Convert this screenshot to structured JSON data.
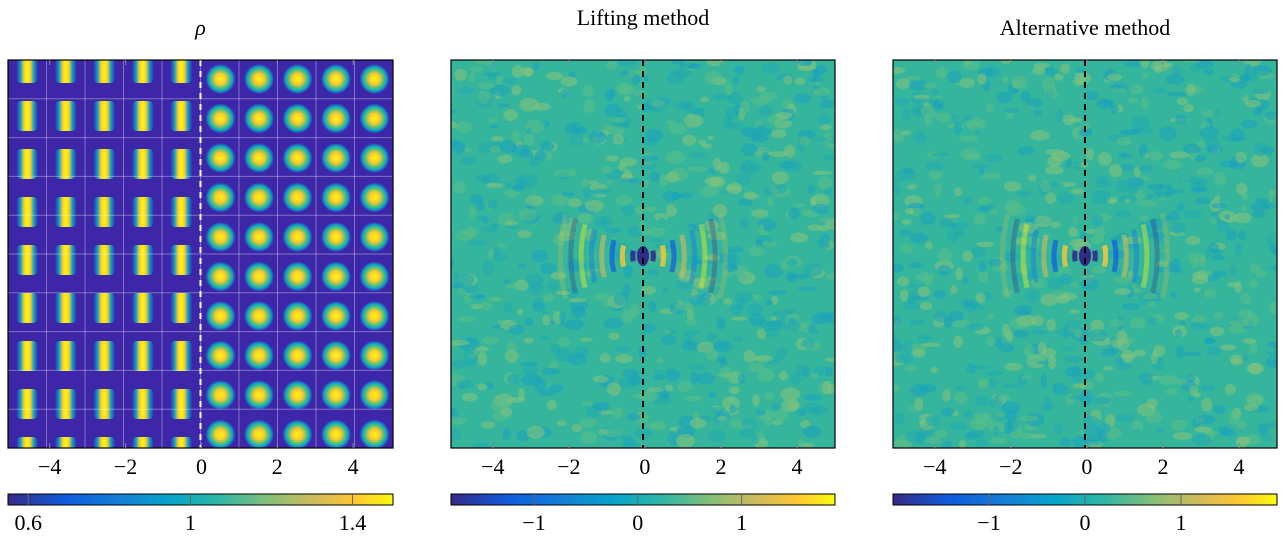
{
  "chart_data": [
    {
      "type": "heatmap",
      "title": "ρ",
      "xlim": [
        -5.1,
        5.05
      ],
      "xticks": [
        {
          "value": -4,
          "label": "−4"
        },
        {
          "value": -2,
          "label": "−2"
        },
        0,
        2,
        4
      ],
      "clim": [
        0.55,
        1.5
      ],
      "cticks": [
        0.6,
        1,
        1.4
      ]
    },
    {
      "type": "heatmap",
      "title": "Lifting method",
      "xlim": [
        -5.1,
        5.0
      ],
      "xticks": [
        {
          "value": -4,
          "label": "−4"
        },
        {
          "value": -2,
          "label": "−2"
        },
        0,
        2,
        4
      ],
      "clim": [
        -1.8,
        1.9
      ],
      "cticks": [
        {
          "value": -1,
          "label": "−1"
        },
        0,
        1
      ]
    },
    {
      "type": "heatmap",
      "title": "Alternative method",
      "xlim": [
        -5.1,
        5.0
      ],
      "xticks": [
        {
          "value": -4,
          "label": "−4"
        },
        {
          "value": -2,
          "label": "−2"
        },
        0,
        2,
        4
      ],
      "clim": [
        -2.0,
        2.0
      ],
      "cticks": [
        {
          "value": -1,
          "label": "−1"
        },
        0,
        1
      ]
    }
  ]
}
